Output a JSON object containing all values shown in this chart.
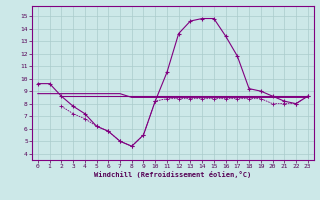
{
  "xlabel": "Windchill (Refroidissement éolien,°C)",
  "bg_color": "#cce8e8",
  "line_color": "#800080",
  "grid_color": "#aacccc",
  "xlim": [
    -0.5,
    23.5
  ],
  "ylim": [
    3.5,
    15.8
  ],
  "xticks": [
    0,
    1,
    2,
    3,
    4,
    5,
    6,
    7,
    8,
    9,
    10,
    11,
    12,
    13,
    14,
    15,
    16,
    17,
    18,
    19,
    20,
    21,
    22,
    23
  ],
  "yticks": [
    4,
    5,
    6,
    7,
    8,
    9,
    10,
    11,
    12,
    13,
    14,
    15
  ],
  "line1_x": [
    0,
    1,
    2,
    3,
    4,
    5,
    6,
    7,
    8,
    9,
    10,
    11,
    12,
    13,
    14,
    15,
    16,
    17,
    18,
    19,
    20,
    21,
    22,
    23
  ],
  "line1_y": [
    9.6,
    9.6,
    8.6,
    7.8,
    7.2,
    6.2,
    5.8,
    5.0,
    4.6,
    5.5,
    8.2,
    10.5,
    13.6,
    14.6,
    14.8,
    14.8,
    13.4,
    11.8,
    9.2,
    9.0,
    8.6,
    8.2,
    8.0,
    8.6
  ],
  "line2_x": [
    2,
    3,
    4,
    5,
    6,
    7,
    8,
    9,
    10,
    11,
    12,
    13,
    14,
    15,
    16,
    17,
    18,
    19,
    20,
    21,
    22,
    23
  ],
  "line2_y": [
    8.6,
    8.6,
    8.6,
    8.6,
    8.6,
    8.6,
    8.6,
    8.6,
    8.6,
    8.6,
    8.6,
    8.6,
    8.6,
    8.6,
    8.6,
    8.6,
    8.6,
    8.6,
    8.6,
    8.6,
    8.6,
    8.6
  ],
  "line3_x": [
    0,
    1,
    2,
    3,
    4,
    5,
    6,
    7,
    8,
    9,
    10,
    11,
    12,
    13,
    14,
    15,
    16,
    17,
    18,
    19,
    20,
    21,
    22,
    23
  ],
  "line3_y": [
    8.8,
    8.8,
    8.8,
    8.8,
    8.8,
    8.8,
    8.8,
    8.8,
    8.5,
    8.5,
    8.5,
    8.5,
    8.5,
    8.5,
    8.5,
    8.5,
    8.5,
    8.5,
    8.5,
    8.5,
    8.5,
    8.5,
    8.5,
    8.5
  ],
  "line4_x": [
    2,
    3,
    4,
    5,
    6,
    7,
    8,
    9,
    10,
    11,
    12,
    13,
    14,
    15,
    16,
    17,
    18,
    19,
    20,
    21,
    22,
    23
  ],
  "line4_y": [
    7.8,
    7.2,
    6.8,
    6.2,
    5.8,
    5.0,
    4.6,
    5.5,
    8.2,
    8.4,
    8.4,
    8.4,
    8.4,
    8.4,
    8.4,
    8.4,
    8.4,
    8.4,
    8.0,
    8.0,
    8.0,
    8.6
  ]
}
